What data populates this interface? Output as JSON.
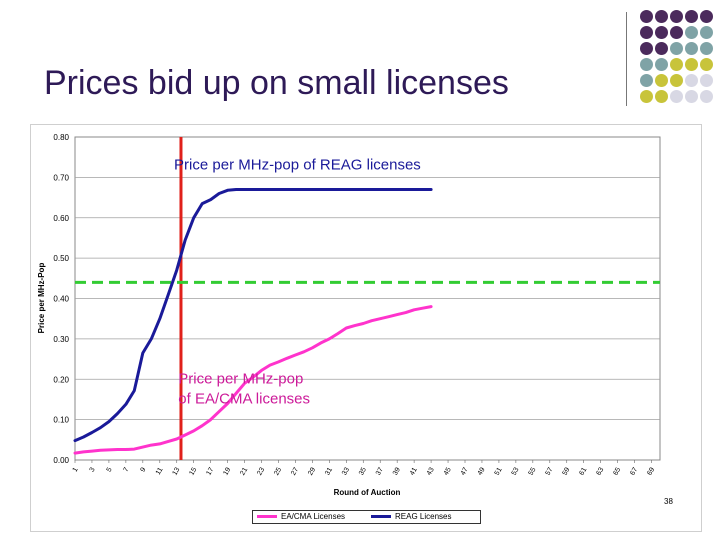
{
  "slide": {
    "title": "Prices bid up on small licenses",
    "page_number": "38"
  },
  "decoration": {
    "dot_colors": [
      "#4b2a5c",
      "#7fa3a6",
      "#c8c43a",
      "#d8d8e4"
    ],
    "dot_grid": [
      [
        0,
        0,
        0,
        0,
        0
      ],
      [
        0,
        0,
        0,
        1,
        1
      ],
      [
        0,
        0,
        1,
        1,
        1
      ],
      [
        1,
        1,
        2,
        2,
        2
      ],
      [
        1,
        2,
        2,
        3,
        3
      ],
      [
        2,
        2,
        3,
        3,
        3
      ]
    ]
  },
  "chart_data": {
    "type": "line",
    "xlabel": "Round of Auction",
    "ylabel": "Price per MHz-Pop",
    "x_ticks": [
      1,
      3,
      5,
      7,
      9,
      11,
      13,
      15,
      17,
      19,
      21,
      23,
      25,
      27,
      29,
      31,
      33,
      35,
      37,
      39,
      41,
      43,
      45,
      47,
      49,
      51,
      53,
      55,
      57,
      59,
      61,
      63,
      65,
      67,
      69
    ],
    "xlim": [
      1,
      70
    ],
    "ylim": [
      0,
      0.8
    ],
    "y_ticks": [
      "0.00",
      "0.10",
      "0.20",
      "0.30",
      "0.40",
      "0.50",
      "0.60",
      "0.70",
      "0.80"
    ],
    "grid": "horizontal",
    "legend_position": "bottom",
    "series": [
      {
        "name": "EA/CMA Licenses",
        "color": "#ff33cc",
        "points": [
          [
            1,
            0.017
          ],
          [
            2,
            0.02
          ],
          [
            3,
            0.022
          ],
          [
            4,
            0.024
          ],
          [
            5,
            0.025
          ],
          [
            6,
            0.026
          ],
          [
            7,
            0.026
          ],
          [
            8,
            0.027
          ],
          [
            9,
            0.032
          ],
          [
            10,
            0.037
          ],
          [
            11,
            0.04
          ],
          [
            12,
            0.046
          ],
          [
            13,
            0.052
          ],
          [
            14,
            0.062
          ],
          [
            15,
            0.072
          ],
          [
            16,
            0.085
          ],
          [
            17,
            0.1
          ],
          [
            18,
            0.12
          ],
          [
            19,
            0.14
          ],
          [
            20,
            0.165
          ],
          [
            21,
            0.19
          ],
          [
            22,
            0.205
          ],
          [
            23,
            0.222
          ],
          [
            24,
            0.235
          ],
          [
            25,
            0.243
          ],
          [
            26,
            0.252
          ],
          [
            27,
            0.26
          ],
          [
            28,
            0.268
          ],
          [
            29,
            0.278
          ],
          [
            30,
            0.29
          ],
          [
            31,
            0.3
          ],
          [
            32,
            0.313
          ],
          [
            33,
            0.327
          ],
          [
            34,
            0.333
          ],
          [
            35,
            0.338
          ],
          [
            36,
            0.345
          ],
          [
            37,
            0.35
          ],
          [
            38,
            0.355
          ],
          [
            39,
            0.36
          ],
          [
            40,
            0.365
          ],
          [
            41,
            0.372
          ],
          [
            42,
            0.376
          ],
          [
            43,
            0.38
          ]
        ]
      },
      {
        "name": "REAG Licenses",
        "color": "#1a1a99",
        "points": [
          [
            1,
            0.048
          ],
          [
            2,
            0.057
          ],
          [
            3,
            0.068
          ],
          [
            4,
            0.08
          ],
          [
            5,
            0.095
          ],
          [
            6,
            0.115
          ],
          [
            7,
            0.138
          ],
          [
            8,
            0.172
          ],
          [
            9,
            0.265
          ],
          [
            10,
            0.3
          ],
          [
            11,
            0.35
          ],
          [
            12,
            0.41
          ],
          [
            13,
            0.47
          ],
          [
            14,
            0.545
          ],
          [
            15,
            0.6
          ],
          [
            16,
            0.635
          ],
          [
            17,
            0.645
          ],
          [
            18,
            0.66
          ],
          [
            19,
            0.668
          ],
          [
            20,
            0.67
          ],
          [
            21,
            0.67
          ],
          [
            22,
            0.67
          ],
          [
            23,
            0.67
          ],
          [
            24,
            0.67
          ],
          [
            25,
            0.67
          ],
          [
            26,
            0.67
          ],
          [
            27,
            0.67
          ],
          [
            28,
            0.67
          ],
          [
            29,
            0.67
          ],
          [
            30,
            0.67
          ],
          [
            31,
            0.67
          ],
          [
            32,
            0.67
          ],
          [
            33,
            0.67
          ],
          [
            34,
            0.67
          ],
          [
            35,
            0.67
          ],
          [
            36,
            0.67
          ],
          [
            37,
            0.67
          ],
          [
            38,
            0.67
          ],
          [
            39,
            0.67
          ],
          [
            40,
            0.67
          ],
          [
            41,
            0.67
          ],
          [
            42,
            0.67
          ],
          [
            43,
            0.67
          ]
        ]
      }
    ],
    "reference_lines": [
      {
        "orientation": "vertical",
        "x": 13.5,
        "color": "#e0201a",
        "style": "solid"
      },
      {
        "orientation": "horizontal",
        "y": 0.44,
        "color": "#33cc33",
        "style": "dashed"
      }
    ],
    "annotations": [
      {
        "text": "Price per MHz-pop of REAG licenses",
        "color": "#1a1a99",
        "x": 27,
        "y": 0.72
      },
      {
        "text": "Price per MHz-pop",
        "color": "#cc1a99",
        "x": 22.5,
        "y": 0.19
      },
      {
        "text": "of EA/CMA licenses",
        "color": "#cc1a99",
        "x": 22.5,
        "y": 0.14
      }
    ]
  }
}
